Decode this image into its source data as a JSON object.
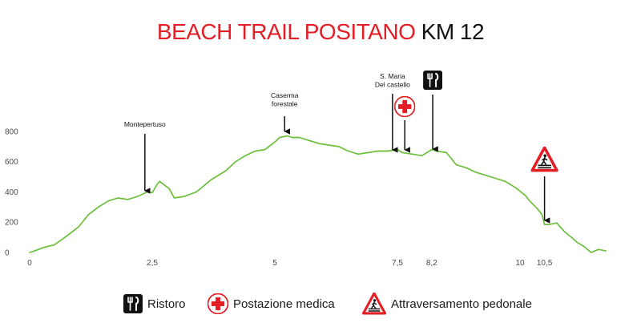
{
  "title": {
    "main": "BEACH TRAIL POSITANO",
    "suffix": "KM 12"
  },
  "colors": {
    "title_red": "#e41e26",
    "line": "#6cbf3a",
    "axis_text": "#4a4a4a",
    "medical_red": "#e31e24"
  },
  "chart_data": {
    "type": "line",
    "title": "BEACH TRAIL POSITANO KM 12",
    "xlabel": "",
    "ylabel": "",
    "ylim": [
      0,
      800
    ],
    "y_ticks": [
      0,
      200,
      400,
      600,
      800
    ],
    "x_ticks": [
      {
        "value": 0,
        "label": "0"
      },
      {
        "value": 2.5,
        "label": "2,5"
      },
      {
        "value": 5,
        "label": "5"
      },
      {
        "value": 7.5,
        "label": "7,5"
      },
      {
        "value": 8.2,
        "label": "8,2"
      },
      {
        "value": 10,
        "label": "10"
      },
      {
        "value": 10.5,
        "label": "10,5"
      }
    ],
    "grid": false,
    "series": [
      {
        "x": [
          0,
          0.1,
          0.3,
          0.5,
          0.7,
          0.8,
          1.0,
          1.1,
          1.2,
          1.4,
          1.6,
          1.8,
          2.0,
          2.2,
          2.4,
          2.5,
          2.6,
          2.65,
          2.85,
          2.95,
          3.15,
          3.4,
          3.7,
          4.0,
          4.2,
          4.4,
          4.6,
          4.8,
          5.0,
          5.1,
          5.25,
          5.35,
          5.5,
          5.7,
          5.9,
          6.1,
          6.3,
          6.5,
          6.7,
          6.9,
          7.1,
          7.3,
          7.5,
          7.6,
          7.8,
          8.0,
          8.2,
          8.3,
          8.5,
          8.7,
          8.9,
          9.1,
          9.3,
          9.5,
          9.7,
          9.9,
          10.1,
          10.2,
          10.35,
          10.45,
          10.5,
          10.6,
          10.75,
          10.9,
          11.05,
          11.15,
          11.3,
          11.45,
          11.6,
          11.75
        ],
        "y": [
          0,
          10,
          35,
          50,
          95,
          120,
          170,
          210,
          250,
          300,
          340,
          360,
          350,
          370,
          400,
          395,
          450,
          470,
          420,
          360,
          370,
          400,
          480,
          540,
          600,
          640,
          670,
          680,
          730,
          760,
          770,
          760,
          760,
          740,
          720,
          710,
          700,
          670,
          650,
          660,
          670,
          670,
          680,
          660,
          650,
          640,
          680,
          670,
          660,
          580,
          560,
          530,
          510,
          490,
          470,
          430,
          380,
          340,
          290,
          250,
          185,
          185,
          195,
          140,
          100,
          70,
          40,
          0,
          20,
          10
        ]
      }
    ],
    "annotations": [
      {
        "label": "Montepertuso",
        "x": 2.35
      },
      {
        "label": "Caserma forestale",
        "lines": [
          "Caserma",
          "forestale"
        ],
        "x": 5.2
      },
      {
        "label": "S. Maria Del castello",
        "lines": [
          "S. Maria",
          "Del castello"
        ],
        "x": 7.4
      },
      {
        "label": "Postazione medica",
        "icon": "medical-cross-icon",
        "x": 7.65
      },
      {
        "label": "Ristoro",
        "icon": "fork-knife-icon",
        "x": 8.22
      },
      {
        "label": "Attraversamento pedonale",
        "icon": "pedestrian-crossing-icon",
        "x": 10.5
      }
    ]
  },
  "legend": [
    {
      "icon": "fork-knife-icon",
      "label": "Ristoro"
    },
    {
      "icon": "medical-cross-icon",
      "label": "Postazione medica"
    },
    {
      "icon": "pedestrian-crossing-icon",
      "label": "Attraversamento pedonale"
    }
  ]
}
